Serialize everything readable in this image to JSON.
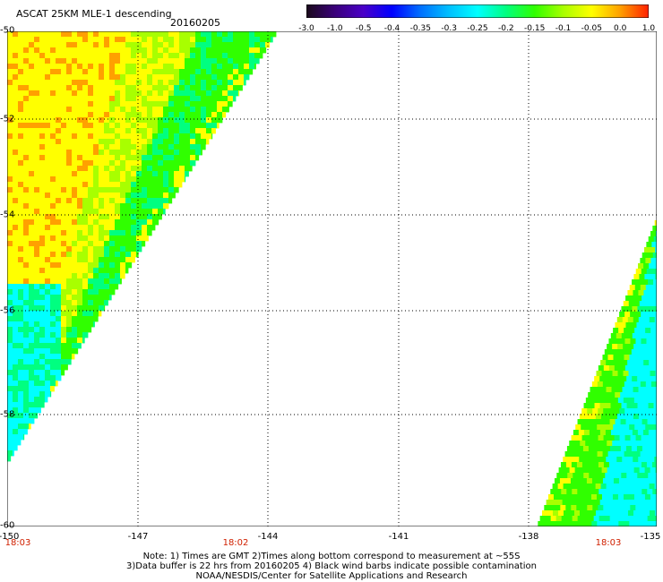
{
  "title": "ASCAT 25KM MLE-1 descending",
  "date": "20160205",
  "colorbar": {
    "labels": [
      "-3.0",
      "-1.0",
      "-0.5",
      "-0.4",
      "-0.35",
      "-0.3",
      "-0.25",
      "-0.2",
      "-0.15",
      "-0.1",
      "-0.05",
      "0.0",
      "1.0"
    ],
    "colors": [
      "#1a0a1a",
      "#3a007a",
      "#4a00c8",
      "#0000ff",
      "#0070ff",
      "#00c0ff",
      "#00ffff",
      "#00ff80",
      "#30ff00",
      "#a8ff00",
      "#ffff00",
      "#ffa000",
      "#ff2000"
    ]
  },
  "y_axis": {
    "labels": [
      "-50",
      "-52",
      "-54",
      "-56",
      "-58",
      "-60"
    ]
  },
  "x_axis": {
    "labels": [
      "-150",
      "-147",
      "-144",
      "-141",
      "-138",
      "-135"
    ]
  },
  "times": [
    "18:03",
    "18:02",
    "18:03"
  ],
  "notes": [
    "Note: 1) Times are GMT 2)Times along bottom correspond to measurement at ~55S",
    "3)Data buffer is 22 hrs from 20160205 4) Black wind barbs indicate possible contamination",
    "NOAA/NESDIS/Center for Satellite Applications and Research"
  ],
  "colors": {
    "grid": "#000000",
    "time_label": "#d02000"
  }
}
